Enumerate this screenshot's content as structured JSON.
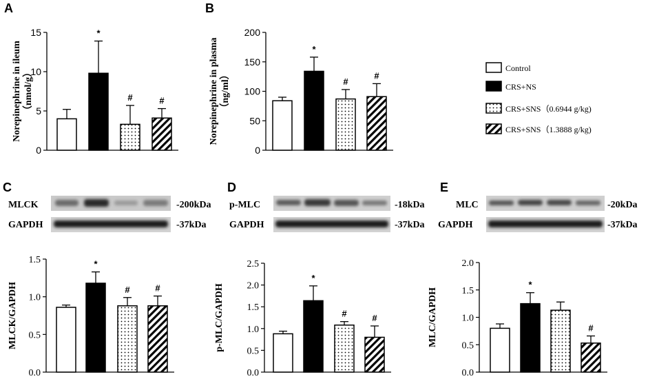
{
  "legend": {
    "entries": [
      {
        "label": "Control",
        "pattern": "white"
      },
      {
        "label": "CRS+NS",
        "pattern": "black"
      },
      {
        "label": "CRS+SNS（0.6944 g/kg)",
        "pattern": "dots"
      },
      {
        "label": "CRS+SNS（1.3888 g/kg)",
        "pattern": "hatch"
      }
    ]
  },
  "blots": [
    {
      "panel": "C",
      "rows": [
        {
          "label": "MLCK",
          "size": "-200kDa"
        },
        {
          "label": "GAPDH",
          "size": "-37kDa"
        }
      ]
    },
    {
      "panel": "D",
      "rows": [
        {
          "label": "p-MLC",
          "size": "-18kDa"
        },
        {
          "label": "GAPDH",
          "size": "-37kDa"
        }
      ]
    },
    {
      "panel": "E",
      "rows": [
        {
          "label": "MLC",
          "size": "-20kDa"
        },
        {
          "label": "GAPDH",
          "size": "-37kDa"
        }
      ]
    }
  ],
  "chart_data": [
    {
      "panel": "A",
      "type": "bar",
      "ylabel": [
        "Norepinephrine in ileum",
        "（nmol/g）"
      ],
      "ylim": [
        0,
        15
      ],
      "yticks": [
        0,
        5,
        10,
        15
      ],
      "yticklabels": [
        "0",
        "5",
        "10",
        "15"
      ],
      "categories": [
        "Control",
        "CRS+NS",
        "CRS+SNS（0.6944 g/kg)",
        "CRS+SNS（1.3888 g/kg)"
      ],
      "values": [
        4.0,
        9.8,
        3.3,
        4.1
      ],
      "errors": [
        1.2,
        4.1,
        2.4,
        1.2
      ],
      "marks": [
        "",
        "*",
        "#",
        "#"
      ]
    },
    {
      "panel": "B",
      "type": "bar",
      "ylabel": [
        "Norepinephrine in plasma",
        "（ng/ml）"
      ],
      "ylim": [
        0,
        200
      ],
      "yticks": [
        0,
        50,
        100,
        150,
        200
      ],
      "yticklabels": [
        "0",
        "50",
        "100",
        "150",
        "200"
      ],
      "categories": [
        "Control",
        "CRS+NS",
        "CRS+SNS（0.6944 g/kg)",
        "CRS+SNS（1.3888 g/kg)"
      ],
      "values": [
        84,
        134,
        87,
        91
      ],
      "errors": [
        6,
        24,
        16,
        22
      ],
      "marks": [
        "",
        "*",
        "#",
        "#"
      ]
    },
    {
      "panel": "C",
      "type": "bar",
      "ylabel": [
        "MLCK/GAPDH"
      ],
      "ylim": [
        0,
        1.5
      ],
      "yticks": [
        0,
        0.5,
        1.0,
        1.5
      ],
      "yticklabels": [
        "0.0",
        "0.5",
        "1.0",
        "1.5"
      ],
      "categories": [
        "Control",
        "CRS+NS",
        "CRS+SNS（0.6944 g/kg)",
        "CRS+SNS（1.3888 g/kg)"
      ],
      "values": [
        0.86,
        1.18,
        0.88,
        0.88
      ],
      "errors": [
        0.03,
        0.15,
        0.11,
        0.13
      ],
      "marks": [
        "",
        "*",
        "#",
        "#"
      ]
    },
    {
      "panel": "D",
      "type": "bar",
      "ylabel": [
        "p-MLC/GAPDH"
      ],
      "ylim": [
        0,
        2.5
      ],
      "yticks": [
        0,
        0.5,
        1.0,
        1.5,
        2.0,
        2.5
      ],
      "yticklabels": [
        "0.0",
        "0.5",
        "1.0",
        "1.5",
        "2.0",
        "2.5"
      ],
      "categories": [
        "Control",
        "CRS+NS",
        "CRS+SNS（0.6944 g/kg)",
        "CRS+SNS（1.3888 g/kg)"
      ],
      "values": [
        0.88,
        1.64,
        1.08,
        0.8
      ],
      "errors": [
        0.06,
        0.34,
        0.08,
        0.26
      ],
      "marks": [
        "",
        "*",
        "#",
        "#"
      ]
    },
    {
      "panel": "E",
      "type": "bar",
      "ylabel": [
        "MLC/GAPDH"
      ],
      "ylim": [
        0,
        2.0
      ],
      "yticks": [
        0,
        0.5,
        1.0,
        1.5,
        2.0
      ],
      "yticklabels": [
        "0.0",
        "0.5",
        "1.0",
        "1.5",
        "2.0"
      ],
      "categories": [
        "Control",
        "CRS+NS",
        "CRS+SNS（0.6944 g/kg)",
        "CRS+SNS（1.3888 g/kg)"
      ],
      "values": [
        0.8,
        1.25,
        1.13,
        0.53
      ],
      "errors": [
        0.08,
        0.2,
        0.15,
        0.13
      ],
      "marks": [
        "",
        "*",
        "",
        "#"
      ]
    }
  ]
}
